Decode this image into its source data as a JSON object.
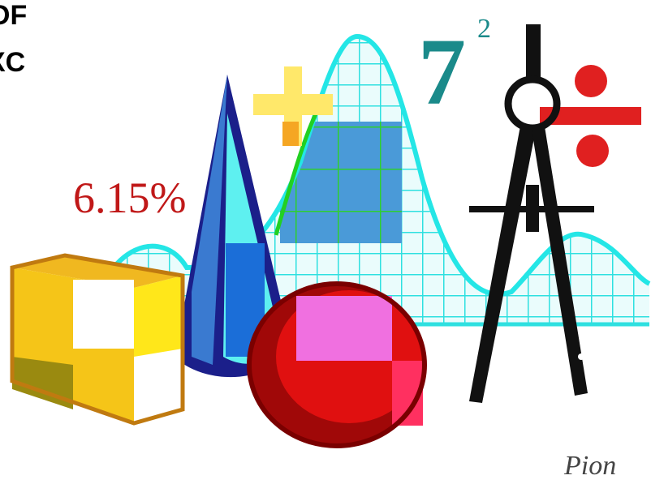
{
  "annotations": {
    "cut_text": [
      "OF",
      "XC"
    ],
    "percent": "6.15%",
    "base": "7",
    "exponent": "2",
    "signature": "Pion"
  }
}
